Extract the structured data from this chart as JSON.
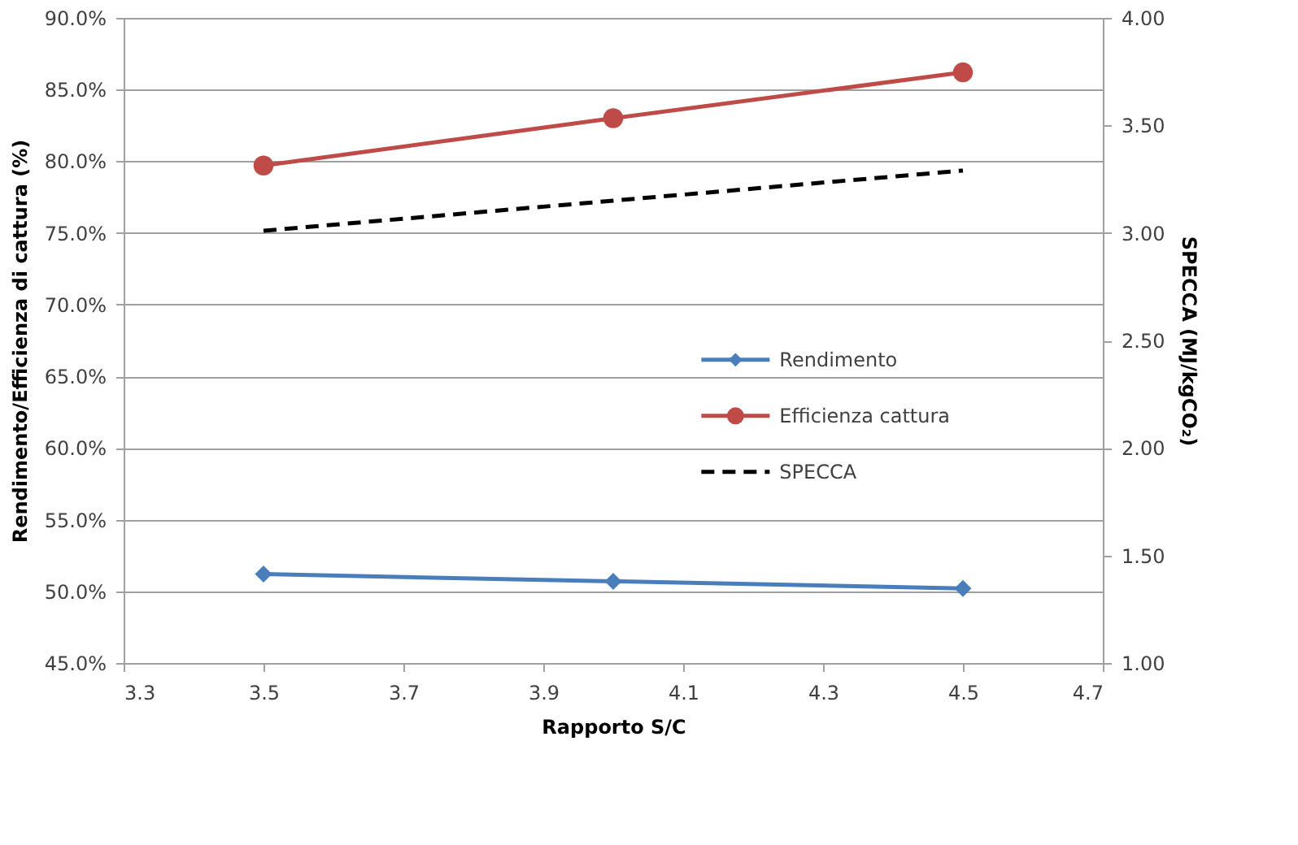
{
  "chart_data": {
    "type": "line",
    "xlabel": "Rapporto S/C",
    "ylabel": "Rendimento/Efficienza di cattura (%)",
    "y2label": "SPECCA (MJ/kgCO₂)",
    "x": [
      3.5,
      4.0,
      4.5
    ],
    "series": [
      {
        "name": "Rendimento",
        "color": "#4a7ebb",
        "values": [
          51.2,
          50.7,
          50.2
        ],
        "marker": "diamond",
        "line_style": "solid"
      },
      {
        "name": "Efficienza cattura",
        "color": "#be4b48",
        "values": [
          79.7,
          83.0,
          86.2
        ],
        "marker": "circle",
        "line_style": "solid"
      },
      {
        "name": "SPECCA",
        "color": "#000000",
        "values": [
          3.01,
          3.15,
          3.29
        ],
        "marker": "none",
        "line_style": "dashed",
        "axis": "y2"
      }
    ],
    "xlim": [
      3.3,
      4.7
    ],
    "xticks": [
      3.3,
      3.5,
      3.7,
      3.9,
      4.1,
      4.3,
      4.5,
      4.7
    ],
    "ylim": [
      45,
      90
    ],
    "yticks": [
      {
        "value": 45,
        "label": "45.0%"
      },
      {
        "value": 50,
        "label": "50.0%"
      },
      {
        "value": 55,
        "label": "55.0%"
      },
      {
        "value": 60,
        "label": "60.0%"
      },
      {
        "value": 65,
        "label": "65.0%"
      },
      {
        "value": 70,
        "label": "70.0%"
      },
      {
        "value": 75,
        "label": "75.0%"
      },
      {
        "value": 80,
        "label": "80.0%"
      },
      {
        "value": 85,
        "label": "85.0%"
      },
      {
        "value": 90,
        "label": "90.0%"
      }
    ],
    "y2lim": [
      1.0,
      4.0
    ],
    "y2ticks": [
      {
        "value": 1,
        "label": "1.00"
      },
      {
        "value": 1.5,
        "label": "1.50"
      },
      {
        "value": 2,
        "label": "2.00"
      },
      {
        "value": 2.5,
        "label": "2.50"
      },
      {
        "value": 3,
        "label": "3.00"
      },
      {
        "value": 3.5,
        "label": "3.50"
      },
      {
        "value": 4,
        "label": "4.00"
      }
    ],
    "grid": "y",
    "legend": "right"
  }
}
